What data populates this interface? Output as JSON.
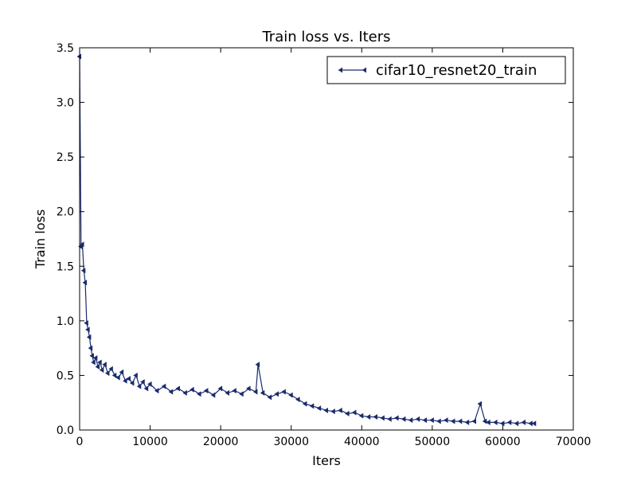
{
  "chart_data": {
    "type": "line",
    "title": "Train loss  vs. Iters",
    "xlabel": "Iters",
    "ylabel": "Train loss",
    "xlim": [
      0,
      70000
    ],
    "ylim": [
      0.0,
      3.5
    ],
    "xticks": [
      0,
      10000,
      20000,
      30000,
      40000,
      50000,
      60000,
      70000
    ],
    "xtick_labels": [
      "0",
      "10000",
      "20000",
      "30000",
      "40000",
      "50000",
      "60000",
      "70000"
    ],
    "yticks": [
      0.0,
      0.5,
      1.0,
      1.5,
      2.0,
      2.5,
      3.0,
      3.5
    ],
    "ytick_labels": [
      "0.0",
      "0.5",
      "1.0",
      "1.5",
      "2.0",
      "2.5",
      "3.0",
      "3.5"
    ],
    "grid": false,
    "legend_position": "top-right",
    "series": [
      {
        "name": "cifar10_resnet20_train",
        "color": "#1a2a6c",
        "marker": "triangle-left",
        "x": [
          0,
          200,
          400,
          600,
          800,
          1000,
          1200,
          1400,
          1600,
          1800,
          2000,
          2300,
          2600,
          2900,
          3200,
          3600,
          4000,
          4500,
          5000,
          5500,
          6000,
          6500,
          7000,
          7500,
          8000,
          8500,
          9000,
          9500,
          10000,
          11000,
          12000,
          13000,
          14000,
          15000,
          16000,
          17000,
          18000,
          19000,
          20000,
          21000,
          22000,
          23000,
          24000,
          25000,
          25300,
          26000,
          27000,
          28000,
          29000,
          30000,
          31000,
          32000,
          33000,
          34000,
          35000,
          36000,
          37000,
          38000,
          39000,
          40000,
          41000,
          42000,
          43000,
          44000,
          45000,
          46000,
          47000,
          48000,
          49000,
          50000,
          51000,
          52000,
          53000,
          54000,
          55000,
          56000,
          56800,
          57500,
          58000,
          59000,
          60000,
          61000,
          62000,
          63000,
          64000,
          64500
        ],
        "y": [
          3.42,
          1.68,
          1.7,
          1.46,
          1.35,
          0.98,
          0.92,
          0.85,
          0.75,
          0.68,
          0.62,
          0.66,
          0.58,
          0.62,
          0.55,
          0.6,
          0.52,
          0.56,
          0.5,
          0.48,
          0.53,
          0.45,
          0.47,
          0.43,
          0.5,
          0.4,
          0.44,
          0.38,
          0.42,
          0.36,
          0.4,
          0.35,
          0.38,
          0.34,
          0.37,
          0.33,
          0.36,
          0.32,
          0.38,
          0.34,
          0.36,
          0.33,
          0.38,
          0.35,
          0.6,
          0.34,
          0.3,
          0.33,
          0.35,
          0.32,
          0.28,
          0.24,
          0.22,
          0.2,
          0.18,
          0.17,
          0.18,
          0.15,
          0.16,
          0.13,
          0.12,
          0.12,
          0.11,
          0.1,
          0.11,
          0.1,
          0.09,
          0.1,
          0.09,
          0.09,
          0.08,
          0.09,
          0.08,
          0.08,
          0.07,
          0.08,
          0.24,
          0.08,
          0.07,
          0.07,
          0.06,
          0.07,
          0.06,
          0.07,
          0.06,
          0.06
        ]
      }
    ]
  }
}
